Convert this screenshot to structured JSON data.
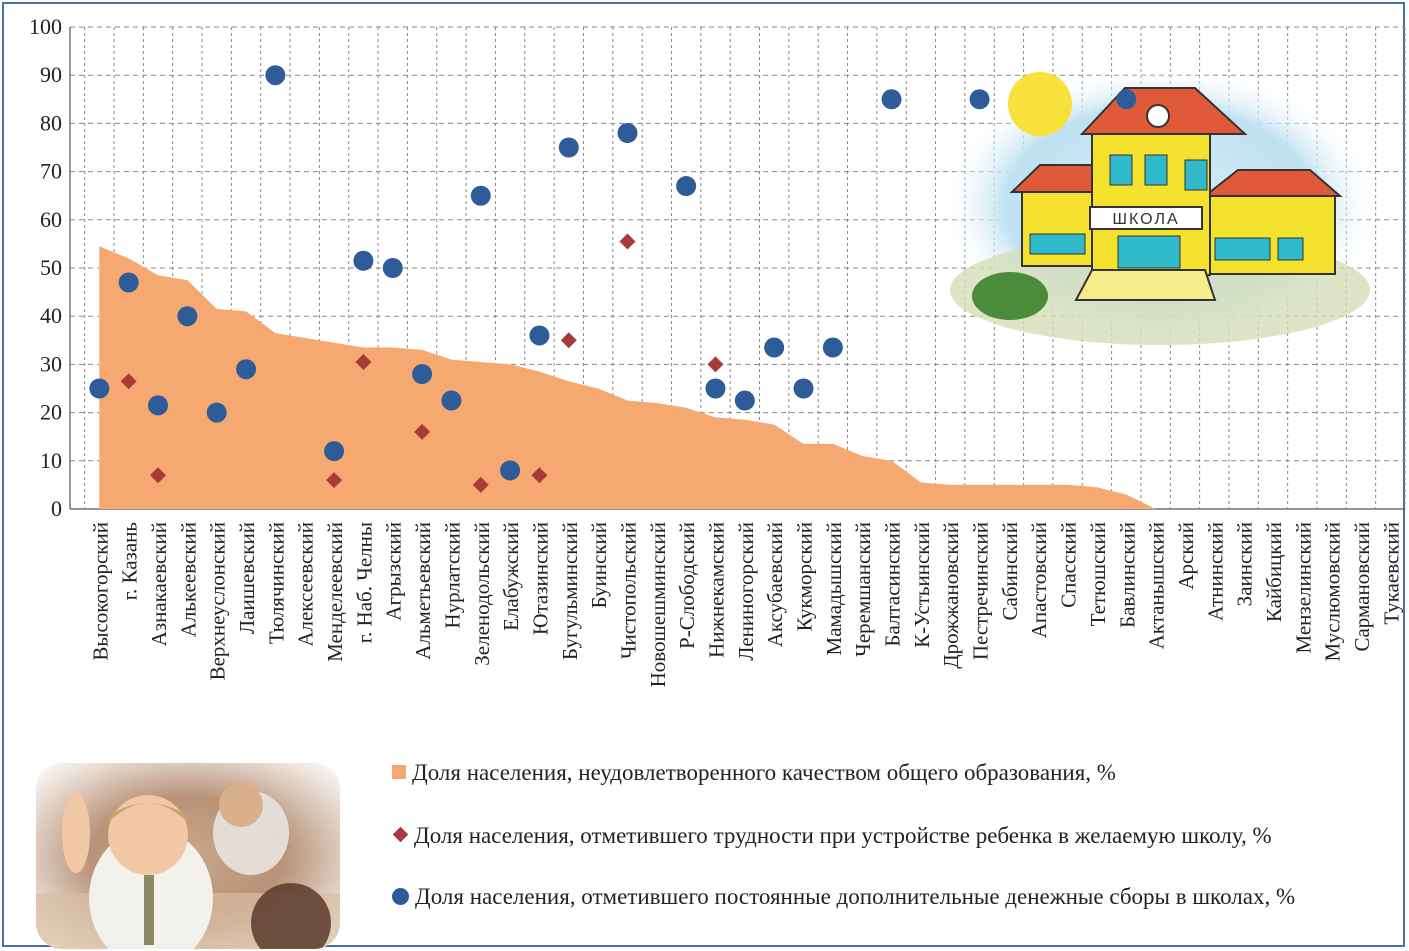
{
  "chart_data": {
    "type": "area-scatter",
    "ylim": [
      0,
      100
    ],
    "yticks": [
      "0",
      "10",
      "20",
      "30",
      "40",
      "50",
      "60",
      "70",
      "80",
      "90",
      "100"
    ],
    "categories": [
      "Высокогорский",
      "г. Казань",
      "Азнакаевский",
      "Алькеевский",
      "Верхнеуслонский",
      "Лаишевский",
      "Тюлячинский",
      "Алексеевский",
      "Менделеевский",
      "г. Наб. Челны",
      "Агрызский",
      "Альметьевский",
      "Нурлатский",
      "Зеленодольский",
      "Елабужский",
      "Ютазинский",
      "Бугульминский",
      "Буинский",
      "Чистопольский",
      "Новошешминский",
      "Р-Слободский",
      "Нижнекамский",
      "Лениногорский",
      "Аксубаевский",
      "Кукморский",
      "Мамадышский",
      "Черемшанский",
      "Балтасинский",
      "К-Устьинский",
      "Дрожжановский",
      "Пестречинский",
      "Сабинский",
      "Апастовский",
      "Спасский",
      "Тетюшский",
      "Бавлинский",
      "Актанышский",
      "Арский",
      "Атнинский",
      "Заинский",
      "Кайбицкий",
      "Мензелинский",
      "Муслюмовский",
      "Сармановский",
      "Тукаевский"
    ],
    "series": [
      {
        "name": "Доля населения, неудовлетворенного качеством общего образования, %",
        "type": "area",
        "color": "#f5a870",
        "values": [
          54.5,
          52,
          48.5,
          47.5,
          41.5,
          41,
          36.5,
          35.5,
          34.5,
          33.5,
          33.5,
          33,
          31,
          30.5,
          30,
          28.5,
          26.5,
          25,
          22.5,
          22,
          21,
          19,
          18.5,
          17.5,
          13.5,
          13.5,
          11,
          10,
          5.5,
          5,
          5,
          5,
          5,
          5,
          4.5,
          3,
          0,
          null,
          null,
          null,
          null,
          null,
          null,
          null,
          null
        ]
      },
      {
        "name": "Доля населения, отметившего трудности при устройстве ребенка в желаемую школу, %",
        "type": "diamond",
        "color": "#a93a3a",
        "values": [
          null,
          26.5,
          7,
          null,
          null,
          null,
          null,
          null,
          6,
          30.5,
          null,
          16,
          null,
          5,
          null,
          7,
          35,
          null,
          55.5,
          null,
          null,
          30,
          null,
          null,
          null,
          null,
          null,
          null,
          null,
          null,
          null,
          null,
          null,
          null,
          null,
          null,
          null,
          null,
          null,
          null,
          null,
          null,
          null,
          null,
          null
        ]
      },
      {
        "name": "Доля населения, отметившего постоянные дополнительные денежные сборы в школах, %",
        "type": "circle",
        "color": "#2e5c99",
        "values": [
          25,
          47,
          21.5,
          40,
          20,
          29,
          90,
          null,
          12,
          51.5,
          50,
          28,
          22.5,
          65,
          8,
          36,
          75,
          null,
          78,
          null,
          67,
          25,
          22.5,
          33.5,
          25,
          33.5,
          null,
          85,
          null,
          null,
          85,
          null,
          null,
          null,
          null,
          85,
          null,
          null,
          null,
          null,
          null,
          null,
          null,
          null,
          null
        ]
      }
    ],
    "grid": true,
    "legend_position": "bottom"
  },
  "legend": {
    "area": "Доля населения, неудовлетворенного качеством общего образования, %",
    "diamond": "Доля населения, отметившего трудности при устройстве ребенка в желаемую школу, %",
    "circle": "Доля населения, отметившего постоянные дополнительные денежные сборы в школах, %"
  },
  "illustration": {
    "sign": "ШКОЛА"
  }
}
